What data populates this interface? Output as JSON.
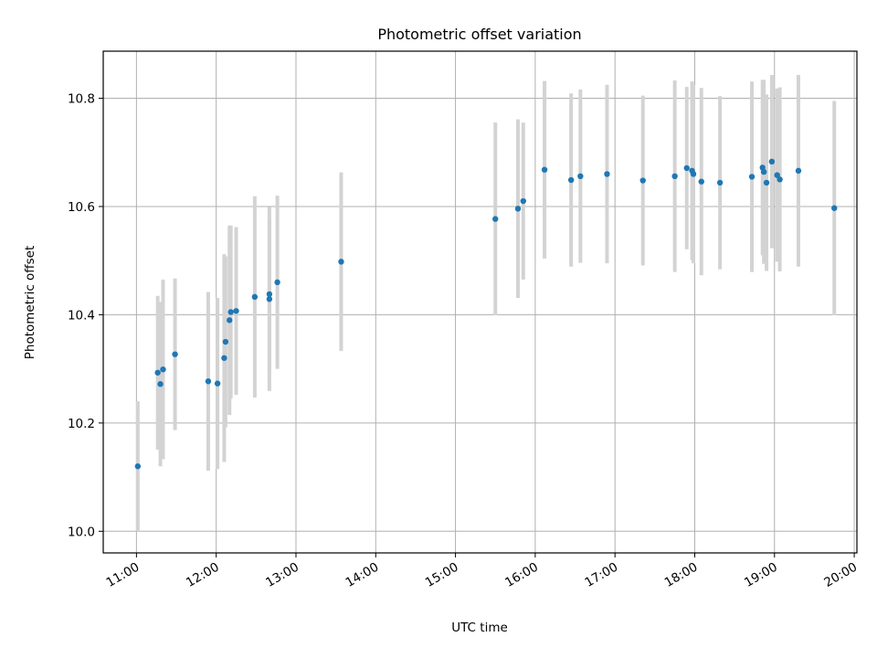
{
  "chart_data": {
    "type": "scatter",
    "title": "Photometric offset variation",
    "xlabel": "UTC time",
    "ylabel": "Photometric offset",
    "x_ticks": [
      "11:00",
      "12:00",
      "13:00",
      "14:00",
      "15:00",
      "16:00",
      "17:00",
      "18:00",
      "19:00",
      "20:00"
    ],
    "y_ticks": [
      "10.0",
      "10.2",
      "10.4",
      "10.6",
      "10.8"
    ],
    "xlim": [
      "10:35",
      "20:02"
    ],
    "ylim": [
      9.96,
      10.887
    ],
    "grid": true,
    "colors": {
      "point": "#1f77b4",
      "errorbar": "#d3d3d3",
      "grid": "#b0b0b0"
    },
    "points": [
      {
        "x": "11:01",
        "y": 10.12,
        "yerr": 0.12
      },
      {
        "x": "11:16",
        "y": 10.293,
        "yerr": 0.142
      },
      {
        "x": "11:18",
        "y": 10.272,
        "yerr": 0.152
      },
      {
        "x": "11:20",
        "y": 10.299,
        "yerr": 0.166
      },
      {
        "x": "11:29",
        "y": 10.327,
        "yerr": 0.14
      },
      {
        "x": "11:54",
        "y": 10.277,
        "yerr": 0.165
      },
      {
        "x": "12:01",
        "y": 10.273,
        "yerr": 0.158
      },
      {
        "x": "12:06",
        "y": 10.32,
        "yerr": 0.192
      },
      {
        "x": "12:07",
        "y": 10.35,
        "yerr": 0.158
      },
      {
        "x": "12:10",
        "y": 10.39,
        "yerr": 0.175
      },
      {
        "x": "12:11",
        "y": 10.405,
        "yerr": 0.16
      },
      {
        "x": "12:15",
        "y": 10.407,
        "yerr": 0.155
      },
      {
        "x": "12:29",
        "y": 10.433,
        "yerr": 0.186
      },
      {
        "x": "12:40",
        "y": 10.429,
        "yerr": 0.17
      },
      {
        "x": "12:40",
        "y": 10.438,
        "yerr": 0.14
      },
      {
        "x": "12:46",
        "y": 10.46,
        "yerr": 0.16
      },
      {
        "x": "13:34",
        "y": 10.498,
        "yerr": 0.165
      },
      {
        "x": "15:30",
        "y": 10.577,
        "yerr": 0.178
      },
      {
        "x": "15:47",
        "y": 10.596,
        "yerr": 0.165
      },
      {
        "x": "15:51",
        "y": 10.61,
        "yerr": 0.145
      },
      {
        "x": "16:07",
        "y": 10.668,
        "yerr": 0.164
      },
      {
        "x": "16:27",
        "y": 10.649,
        "yerr": 0.16
      },
      {
        "x": "16:34",
        "y": 10.656,
        "yerr": 0.16
      },
      {
        "x": "16:54",
        "y": 10.66,
        "yerr": 0.165
      },
      {
        "x": "17:21",
        "y": 10.648,
        "yerr": 0.157
      },
      {
        "x": "17:45",
        "y": 10.656,
        "yerr": 0.177
      },
      {
        "x": "17:54",
        "y": 10.671,
        "yerr": 0.15
      },
      {
        "x": "17:58",
        "y": 10.666,
        "yerr": 0.165
      },
      {
        "x": "17:59",
        "y": 10.66,
        "yerr": 0.165
      },
      {
        "x": "18:05",
        "y": 10.646,
        "yerr": 0.173
      },
      {
        "x": "18:19",
        "y": 10.644,
        "yerr": 0.16
      },
      {
        "x": "18:43",
        "y": 10.655,
        "yerr": 0.176
      },
      {
        "x": "18:51",
        "y": 10.672,
        "yerr": 0.162
      },
      {
        "x": "18:52",
        "y": 10.664,
        "yerr": 0.17
      },
      {
        "x": "18:54",
        "y": 10.644,
        "yerr": 0.163
      },
      {
        "x": "18:58",
        "y": 10.683,
        "yerr": 0.16
      },
      {
        "x": "19:02",
        "y": 10.658,
        "yerr": 0.16
      },
      {
        "x": "19:04",
        "y": 10.65,
        "yerr": 0.17
      },
      {
        "x": "19:18",
        "y": 10.666,
        "yerr": 0.177
      },
      {
        "x": "19:45",
        "y": 10.597,
        "yerr": 0.198
      }
    ]
  }
}
